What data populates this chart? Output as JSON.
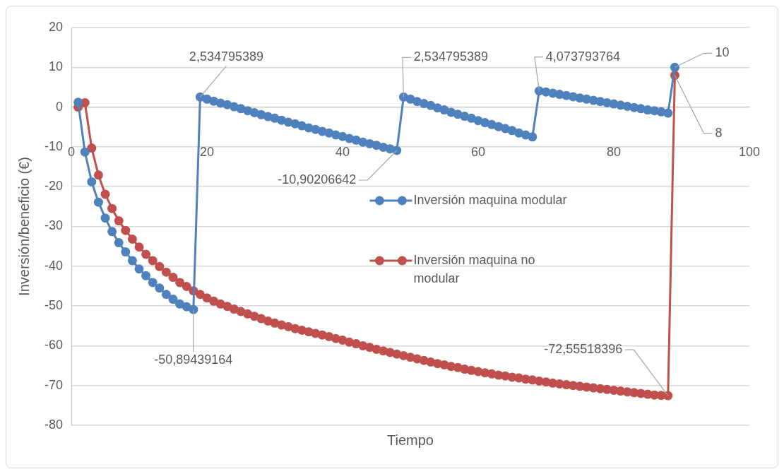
{
  "chart_data": {
    "type": "line",
    "xlabel": "Tiempo",
    "ylabel": "Inversión/beneficio (€)",
    "x": [
      1,
      2,
      3,
      4,
      5,
      6,
      7,
      8,
      9,
      10,
      11,
      12,
      13,
      14,
      15,
      16,
      17,
      18,
      19,
      20,
      21,
      22,
      23,
      24,
      25,
      26,
      27,
      28,
      29,
      30,
      31,
      32,
      33,
      34,
      35,
      36,
      37,
      38,
      39,
      40,
      41,
      42,
      43,
      44,
      45,
      46,
      47,
      48,
      49,
      50,
      51,
      52,
      53,
      54,
      55,
      56,
      57,
      58,
      59,
      60,
      61,
      62,
      63,
      64,
      65,
      66,
      67,
      68,
      69,
      70,
      71,
      72,
      73,
      74,
      75,
      76,
      77,
      78,
      79,
      80,
      81,
      82,
      83,
      84,
      85,
      86,
      87,
      88,
      89
    ],
    "series": [
      {
        "name": "Inversión maquina modular",
        "color": "#4f81bd",
        "values": [
          1.2,
          -11.3,
          -18.8,
          -23.9,
          -27.9,
          -31.3,
          -34.1,
          -36.4,
          -38.6,
          -40.7,
          -42.4,
          -44.1,
          -45.5,
          -47.1,
          -48.3,
          -49.5,
          -50.2,
          -50.89439164,
          2.534795389,
          2.0,
          1.5,
          1.0,
          0.6,
          0.1,
          -0.4,
          -0.9,
          -1.4,
          -1.9,
          -2.4,
          -2.8,
          -3.3,
          -3.8,
          -4.2,
          -4.7,
          -5.2,
          -5.6,
          -6.1,
          -6.5,
          -7.0,
          -7.4,
          -7.9,
          -8.3,
          -8.8,
          -9.2,
          -9.6,
          -10.1,
          -10.5,
          -10.90206642,
          2.534795389,
          2.0,
          1.4,
          0.9,
          0.4,
          -0.2,
          -0.7,
          -1.3,
          -1.8,
          -2.3,
          -2.8,
          -3.4,
          -3.9,
          -4.4,
          -4.9,
          -5.4,
          -5.9,
          -6.5,
          -7.0,
          -7.5,
          4.073793764,
          3.8,
          3.5,
          3.2,
          2.9,
          2.6,
          2.3,
          2.0,
          1.7,
          1.4,
          1.1,
          0.8,
          0.5,
          0.2,
          -0.1,
          -0.4,
          -0.7,
          -0.9,
          -1.2,
          -1.5,
          10
        ]
      },
      {
        "name": "Inversión maquina no modular",
        "color": "#c0504d",
        "values": [
          0,
          1.1,
          -10.3,
          -17.1,
          -21.9,
          -25.5,
          -28.6,
          -31,
          -33.2,
          -35.2,
          -37,
          -38.6,
          -40.1,
          -41.5,
          -42.8,
          -44.1,
          -45.1,
          -46.2,
          -47.1,
          -48.0,
          -48.8,
          -49.5,
          -50.1,
          -50.8,
          -51.4,
          -52.0,
          -52.6,
          -53.2,
          -53.8,
          -54.3,
          -54.8,
          -55.2,
          -55.7,
          -56.1,
          -56.5,
          -56.9,
          -57.3,
          -57.7,
          -58.2,
          -58.6,
          -59.1,
          -59.5,
          -60.0,
          -60.4,
          -60.9,
          -61.3,
          -61.7,
          -62.1,
          -62.5,
          -62.9,
          -63.3,
          -63.7,
          -64.1,
          -64.5,
          -64.8,
          -65.2,
          -65.5,
          -65.9,
          -66.2,
          -66.5,
          -66.8,
          -67.1,
          -67.4,
          -67.6,
          -67.9,
          -68.1,
          -68.4,
          -68.6,
          -68.9,
          -69.1,
          -69.4,
          -69.6,
          -69.8,
          -70.0,
          -70.2,
          -70.4,
          -70.6,
          -70.8,
          -71.0,
          -71.2,
          -71.4,
          -71.6,
          -71.8,
          -72.0,
          -72.2,
          -72.4,
          -72.5,
          -72.55518396,
          8
        ]
      }
    ],
    "xlim": [
      0,
      100
    ],
    "xticks": [
      0,
      20,
      40,
      60,
      80,
      100
    ],
    "ylim": [
      -80,
      20
    ],
    "yticks": [
      -80,
      -70,
      -60,
      -50,
      -40,
      -30,
      -20,
      -10,
      0,
      10,
      20
    ],
    "grid": "y",
    "legend": "right",
    "marker": "circle",
    "line_style": "solid",
    "annotations": [
      {
        "text": "2,534795389",
        "x": 19,
        "y": 2.534795389
      },
      {
        "text": "2,534795389",
        "x": 49,
        "y": 2.534795389
      },
      {
        "text": "4,073793764",
        "x": 69,
        "y": 4.073793764
      },
      {
        "text": "10",
        "x": 89,
        "y": 10
      },
      {
        "text": "8",
        "x": 89,
        "y": 8
      },
      {
        "text": "-10,90206642",
        "x": 48,
        "y": -10.90206642
      },
      {
        "text": "-50,89439164",
        "x": 18,
        "y": -50.89439164
      },
      {
        "text": "-72,55518396",
        "x": 88,
        "y": -72.55518396
      }
    ]
  }
}
